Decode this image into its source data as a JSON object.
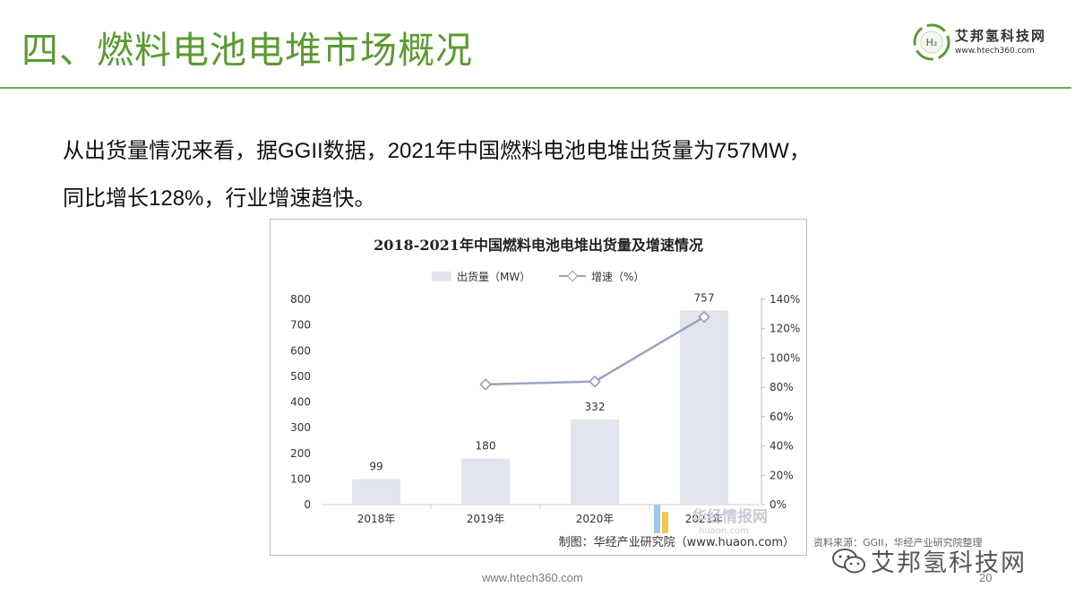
{
  "slide": {
    "title": "四、燃料电池电堆市场概况",
    "logo_name": "艾邦氢科技网",
    "logo_url": "www.htech360.com",
    "logo_badge": "H₂",
    "body_line1": "从出货量情况来看，据GGII数据，2021年中国燃料电池电堆出货量为757MW，",
    "body_line2": "同比增长128%，行业增速趋快。",
    "footer_url": "www.htech360.com",
    "page_number": "20",
    "external_caption": "资料来源：GGII，华经产业研究院整理",
    "watermark": "艾邦氢科技网"
  },
  "colors": {
    "title_green": "#5b9a32",
    "bar_fill": "#e3e5ee",
    "line_stroke": "#9da3bf",
    "marker_stroke": "#8f96b5"
  },
  "chart_data": {
    "type": "bar+line",
    "title": "2018-2021年中国燃料电池电堆出货量及增速情况",
    "categories": [
      "2018年",
      "2019年",
      "2020年",
      "2021年"
    ],
    "series": [
      {
        "name": "出货量（MW）",
        "type": "bar",
        "axis": "left",
        "values": [
          99,
          180,
          332,
          757
        ]
      },
      {
        "name": "增速（%）",
        "type": "line",
        "axis": "right",
        "values": [
          null,
          82,
          84,
          128
        ]
      }
    ],
    "data_labels": [
      "99",
      "180",
      "332",
      "757"
    ],
    "y_left": {
      "min": 0,
      "max": 800,
      "ticks": [
        "0",
        "100",
        "200",
        "300",
        "400",
        "500",
        "600",
        "700",
        "800"
      ]
    },
    "y_right": {
      "min": 0,
      "max": 140,
      "ticks": [
        "0%",
        "20%",
        "40%",
        "60%",
        "80%",
        "100%",
        "120%",
        "140%"
      ]
    },
    "legend_position": "top",
    "source": "制图：华经产业研究院（www.huaon.com）",
    "watermark": "华经情报网",
    "watermark_url": "huaon.com"
  }
}
